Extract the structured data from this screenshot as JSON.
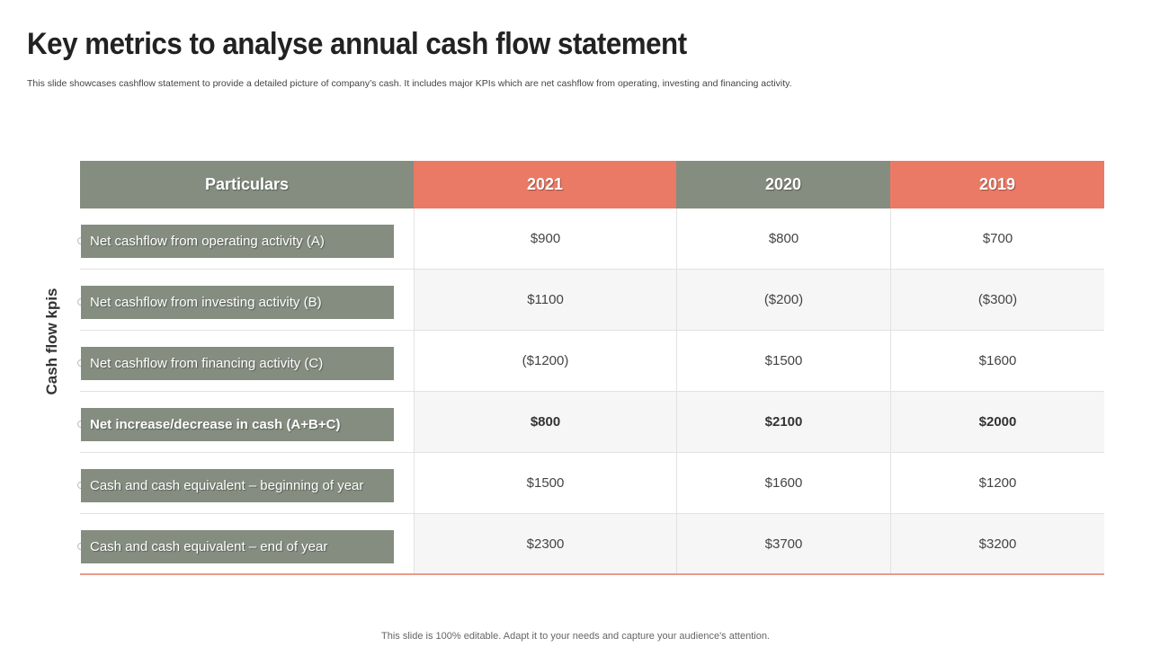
{
  "title": "Key metrics to analyse annual cash flow statement",
  "subtitle": "This slide showcases cashflow statement to provide a detailed picture of company’s cash. It includes major KPIs which are net cashflow from operating, investing and financing activity.",
  "side_label": "Cash flow kpis",
  "table": {
    "headers": [
      "Particulars",
      "2021",
      "2020",
      "2019"
    ],
    "rows": [
      {
        "label": "Net cashflow from operating activity (A)",
        "values": [
          "$900",
          "$800",
          "$700"
        ]
      },
      {
        "label": "Net cashflow from investing activity (B)",
        "values": [
          "$1100",
          "($200)",
          "($300)"
        ]
      },
      {
        "label": "Net cashflow from financing activity (C)",
        "values": [
          "($1200)",
          "$1500",
          "$1600"
        ]
      },
      {
        "label": "Net increase/decrease in cash (A+B+C)",
        "values": [
          "$800",
          "$2100",
          "$2000"
        ]
      },
      {
        "label": "Cash and cash equivalent – beginning of year",
        "values": [
          "$1500",
          "$1600",
          "$1200"
        ]
      },
      {
        "label": "Cash and cash equivalent – end of year",
        "values": [
          "$2300",
          "$3700",
          "$3200"
        ]
      }
    ]
  },
  "colors": {
    "header_grey": "#848d7f",
    "header_coral": "#ea7a66"
  },
  "footer": "This slide is 100% editable. Adapt it to your needs and capture your audience's attention."
}
